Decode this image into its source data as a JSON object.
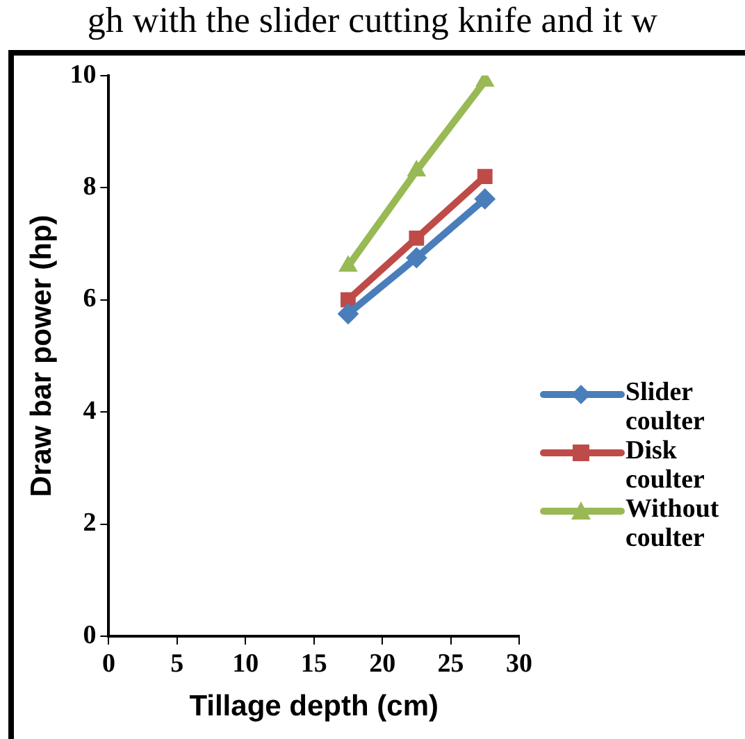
{
  "chart_data": {
    "type": "line",
    "xlabel": "Tillage depth (cm)",
    "ylabel": "Draw bar power (hp)",
    "annotations": [
      "gh with the slider cutting knife and it w"
    ],
    "x": [
      17.5,
      22.5,
      27.5
    ],
    "series": [
      {
        "name": "Slider coulter",
        "color": "#4a7ebb",
        "marker": "diamond",
        "values": [
          5.75,
          6.75,
          7.8
        ]
      },
      {
        "name": "Disk coulter",
        "color": "#be4b48",
        "marker": "square",
        "values": [
          6.0,
          7.1,
          8.2
        ]
      },
      {
        "name": "Without coulter",
        "color": "#98b954",
        "marker": "triangle",
        "values": [
          6.6,
          8.3,
          9.9
        ]
      }
    ],
    "xlim": [
      0,
      30
    ],
    "xticks": [
      0,
      5,
      10,
      15,
      20,
      25,
      30
    ],
    "ylim": [
      0,
      10
    ],
    "yticks": [
      0,
      2,
      4,
      6,
      8,
      10
    ],
    "grid": false,
    "legend": "right",
    "line_style": "solid"
  }
}
